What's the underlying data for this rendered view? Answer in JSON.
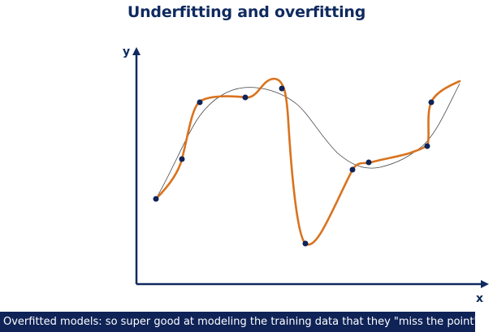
{
  "title": "Underfitting and overfitting",
  "axes": {
    "y_label": "y",
    "x_label": "x"
  },
  "caption": "Overfitted models: so super good at modeling the training data that they \"miss the point\"",
  "colors": {
    "title": "#0f2a5f",
    "axis": "#0f2a5f",
    "overfit_curve": "#d9731f",
    "smooth_curve": "#444444",
    "points": "#0f2357",
    "caption_bg": "#0f2357",
    "caption_text": "#ffffff"
  }
}
